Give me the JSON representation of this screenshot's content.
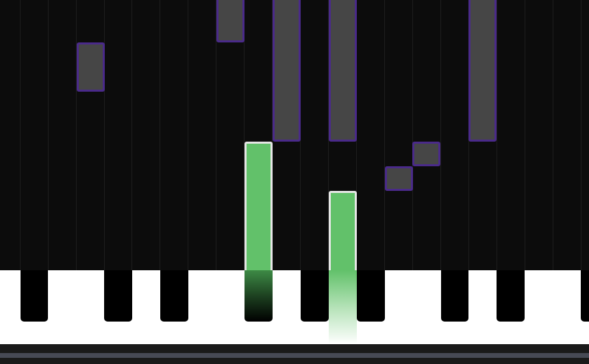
{
  "piano_roll": {
    "lanes": 21,
    "colors": {
      "background": "#0c0c0c",
      "lane_divider": "#1e1e1e",
      "upcoming_note_fill": "#464646",
      "upcoming_note_border": "#4a2a8a",
      "active_note_fill": "#62c16a",
      "active_note_border": "#e6e6e6"
    }
  },
  "keyboard": {
    "white_key_color": "#ffffff",
    "black_key_color": "#000000",
    "pressed_color": "#62c16a",
    "pressed_keys": [
      "black-key-5",
      "white-key-6"
    ]
  }
}
